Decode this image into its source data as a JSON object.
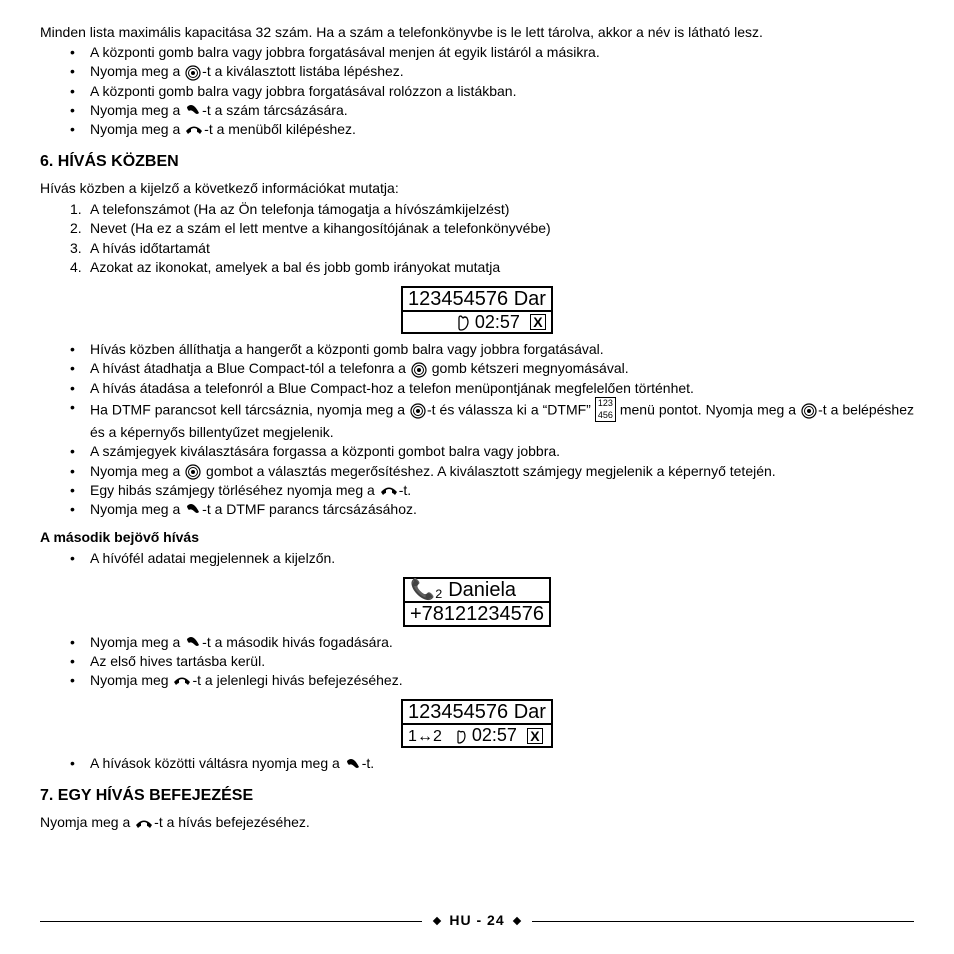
{
  "intro": "Minden lista maximális kapacitása 32 szám. Ha a szám a telefonkönyvbe is le lett tárolva, akkor a név is látható lesz.",
  "bullets1": [
    {
      "pre": "A központi gomb balra vagy jobbra forgatásával menjen át egyik listáról a másikra.",
      "icon": null,
      "post": ""
    },
    {
      "pre": "Nyomja meg a ",
      "icon": "center",
      "post": "-t a kiválasztott listába lépéshez."
    },
    {
      "pre": "A központi gomb balra vagy jobbra forgatásával rolózzon a listákban.",
      "icon": null,
      "post": ""
    },
    {
      "pre": "Nyomja meg a ",
      "icon": "call",
      "post": "-t a szám tárcsázására."
    },
    {
      "pre": "Nyomja meg a ",
      "icon": "end",
      "post": "-t a menüből kilépéshez."
    }
  ],
  "section6_title": "6. HÍVÁS KÖZBEN",
  "section6_intro": "Hívás közben a kijelző a következő információkat mutatja:",
  "section6_numbers": [
    "A telefonszámot (Ha az Ön telefonja támogatja a hívószámkijelzést)",
    "Nevet (Ha ez a szám el lett mentve a kihangosítójának a telefonkönyvébe)",
    "A hívás időtartamát",
    "Azokat az ikonokat, amelyek a bal és jobb gomb irányokat mutatja"
  ],
  "lcd1": {
    "row1": "123454576 Dar",
    "row2_signal": "📞",
    "row2_time": "02:57"
  },
  "bullets2": [
    "Hívás közben állíthatja a hangerőt a központi gomb balra vagy jobbra forgatásával.",
    "A hívást átadhatja a Blue Compact-tól a telefonra a |CENTER| gomb kétszeri megnyomásával.",
    "A hívás átadása a telefonról a Blue Compact-hoz a telefon menüpontjának megfelelően történhet.",
    "Ha DTMF parancsot kell tárcsáznia, nyomja meg a |CENTER|-t és válassza ki a “DTMF” |KEYPAD| menü pontot. Nyomja meg a |CENTER|-t a belépéshez és a képernyős billentyűzet megjelenik.",
    "A számjegyek kiválasztására forgassa a központi gombot balra vagy jobbra.",
    "Nyomja meg a |CENTER| gombot a választás megerősítéshez. A kiválasztott számjegy megjelenik a képernyő tetején.",
    "Egy hibás számjegy törléséhez nyomja meg a |END|-t.",
    "Nyomja meg a |CALL|-t a DTMF parancs tárcsázásához."
  ],
  "sub2": "A második bejövő hívás",
  "bullets3": [
    "A hívófél adatai megjelennek a kijelzőn."
  ],
  "lcd2": {
    "row1": "📞₂ Daniela",
    "row2": "+78121234576"
  },
  "bullets4": [
    "Nyomja meg a |CALL|-t a második hivás fogadására.",
    "Az első hives tartásba kerül.",
    "Nyomja  meg |END|-t a jelenlegi hivás befejezéséhez."
  ],
  "lcd3": {
    "row1": "123454576 Dar",
    "row2_left": "1↔2",
    "row2_time": "02:57"
  },
  "bullets5": [
    "A hívások közötti váltásra nyomja meg a |CALL|-t."
  ],
  "section7_title": "7. EGY HÍVÁS BEFEJEZÉSE",
  "section7_text": "Nyomja meg a |END|-t a hívás befejezéséhez.",
  "footer": "HU - 24"
}
